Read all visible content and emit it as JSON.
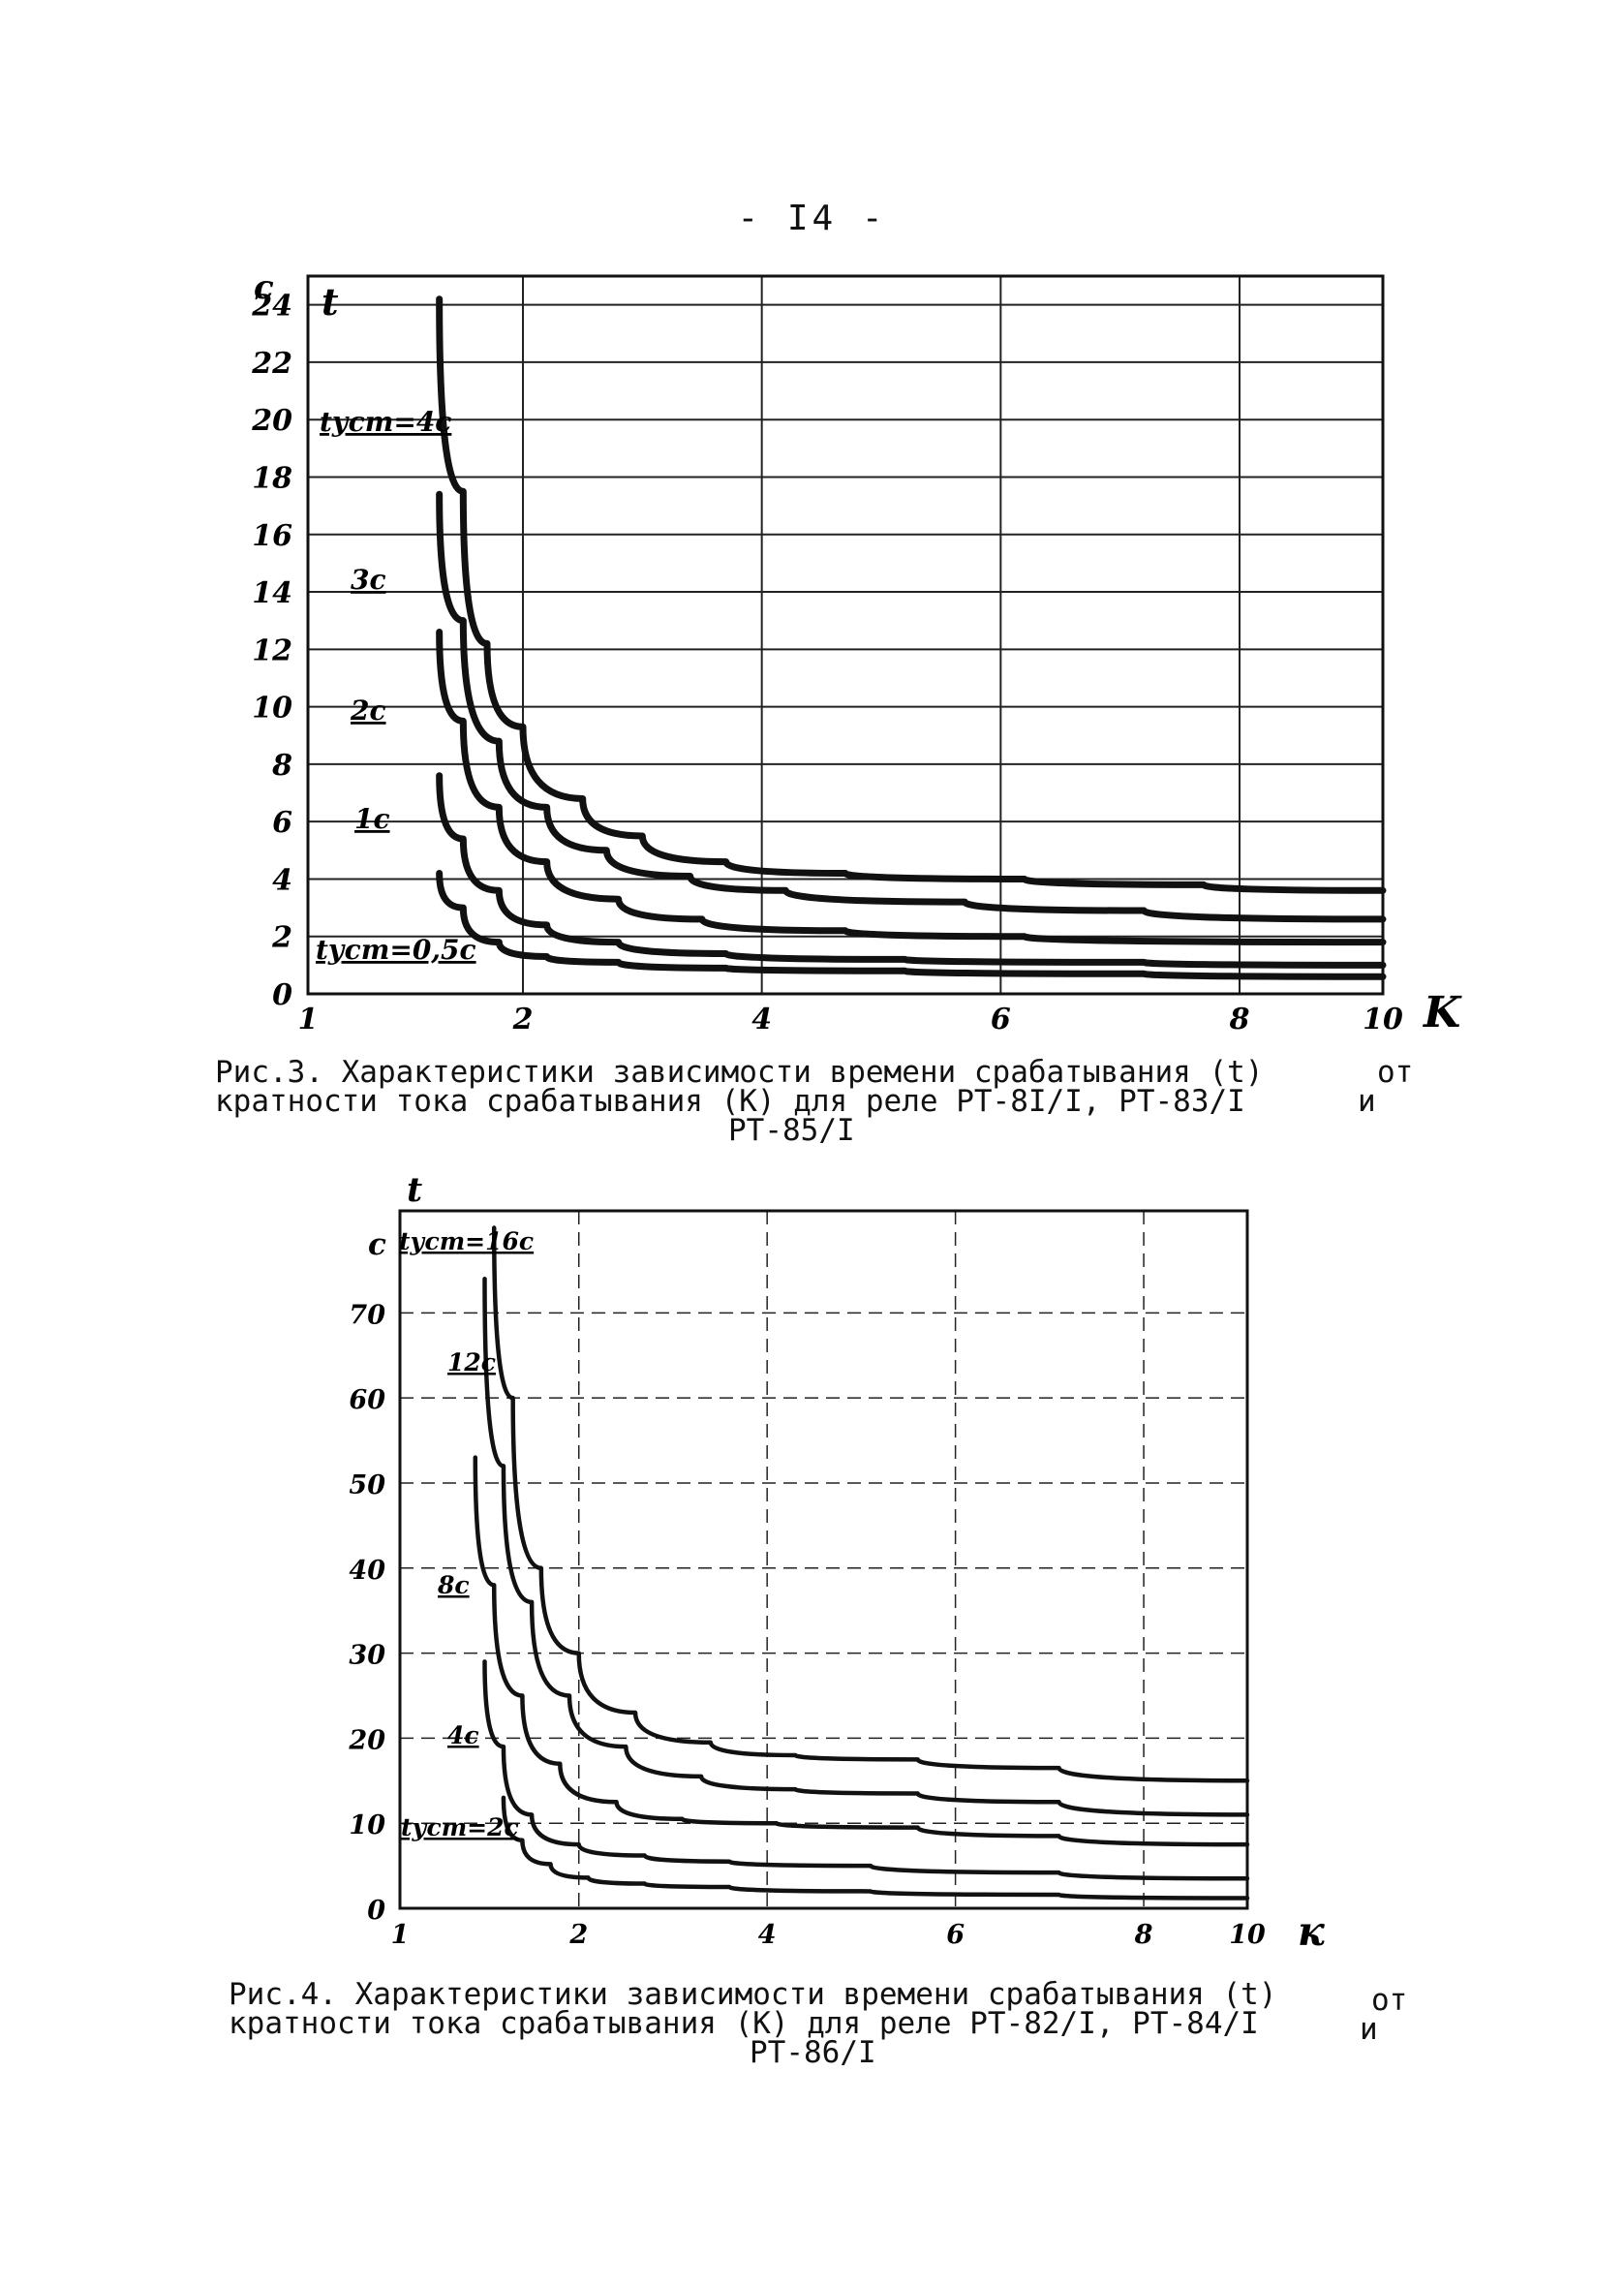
{
  "page_number": "- I4 -",
  "chart_data": [
    {
      "type": "line",
      "ylabel": "t",
      "yunit": "c",
      "xlabel": "K",
      "xlim": [
        1,
        10
      ],
      "ylim": [
        0,
        25
      ],
      "x_ticks": [
        "1",
        "2",
        "4",
        "6",
        "8",
        "10"
      ],
      "x_tick_values": [
        1,
        2.8,
        4.8,
        6.8,
        8.8,
        10
      ],
      "y_ticks": [
        "0",
        "2",
        "4",
        "6",
        "8",
        "10",
        "12",
        "14",
        "16",
        "18",
        "20",
        "22",
        "24"
      ],
      "grid": true,
      "series": [
        {
          "name": "tуст=4c",
          "x": [
            2.1,
            2.3,
            2.5,
            2.8,
            3.3,
            3.8,
            4.5,
            5.5,
            7,
            8.5,
            10
          ],
          "y": [
            24.2,
            17.5,
            12.2,
            9.3,
            6.8,
            5.5,
            4.6,
            4.2,
            4.0,
            3.8,
            3.6
          ]
        },
        {
          "name": "3c",
          "x": [
            2.1,
            2.3,
            2.6,
            3.0,
            3.5,
            4.2,
            5.0,
            6.5,
            8,
            10
          ],
          "y": [
            17.4,
            13.0,
            8.8,
            6.5,
            5.0,
            4.1,
            3.6,
            3.2,
            2.9,
            2.6
          ]
        },
        {
          "name": "2c",
          "x": [
            2.1,
            2.3,
            2.6,
            3.0,
            3.6,
            4.3,
            5.5,
            7,
            10
          ],
          "y": [
            12.6,
            9.5,
            6.5,
            4.6,
            3.3,
            2.6,
            2.2,
            2.0,
            1.8
          ]
        },
        {
          "name": "1c",
          "x": [
            2.1,
            2.3,
            2.6,
            3.0,
            3.6,
            4.5,
            6,
            8,
            10
          ],
          "y": [
            7.6,
            5.4,
            3.6,
            2.4,
            1.8,
            1.4,
            1.2,
            1.1,
            1.0
          ]
        },
        {
          "name": "tуст=0,5c",
          "x": [
            2.1,
            2.3,
            2.6,
            3.0,
            3.6,
            4.5,
            6,
            8,
            10
          ],
          "y": [
            4.2,
            3.0,
            1.8,
            1.3,
            1.1,
            0.9,
            0.8,
            0.7,
            0.6
          ]
        }
      ]
    },
    {
      "type": "line",
      "ylabel": "t",
      "yunit": "c",
      "xlabel": "к",
      "xlim": [
        1,
        10
      ],
      "ylim": [
        0,
        82
      ],
      "x_ticks": [
        "1",
        "2",
        "4",
        "6",
        "8",
        "10"
      ],
      "x_tick_values": [
        1,
        2.9,
        4.9,
        6.9,
        8.9,
        10
      ],
      "y_ticks": [
        "0",
        "10",
        "20",
        "30",
        "40",
        "50",
        "60",
        "70"
      ],
      "grid": true,
      "series": [
        {
          "name": "tуст=16c",
          "x": [
            2.0,
            2.2,
            2.5,
            2.9,
            3.5,
            4.3,
            5.2,
            6.5,
            8,
            10
          ],
          "y": [
            80,
            60,
            40,
            30,
            23,
            19.5,
            18,
            17.5,
            16.5,
            15
          ]
        },
        {
          "name": "12c",
          "x": [
            1.9,
            2.1,
            2.4,
            2.8,
            3.4,
            4.2,
            5.2,
            6.5,
            8,
            10
          ],
          "y": [
            74,
            52,
            36,
            25,
            19,
            15.5,
            14,
            13.5,
            12.5,
            11
          ]
        },
        {
          "name": "8c",
          "x": [
            1.8,
            2.0,
            2.3,
            2.7,
            3.3,
            4.0,
            5.0,
            6.5,
            8,
            10
          ],
          "y": [
            53,
            38,
            25,
            17,
            12.5,
            10.5,
            10,
            9.5,
            8.5,
            7.5
          ]
        },
        {
          "name": "4c",
          "x": [
            1.9,
            2.1,
            2.4,
            2.9,
            3.6,
            4.5,
            6,
            8,
            10
          ],
          "y": [
            29,
            19,
            11,
            7.5,
            6.2,
            5.5,
            5,
            4.2,
            3.5
          ]
        },
        {
          "name": "tуст=2c",
          "x": [
            2.1,
            2.3,
            2.6,
            3.0,
            3.6,
            4.5,
            6,
            8,
            10
          ],
          "y": [
            13,
            8,
            5.2,
            3.6,
            2.9,
            2.5,
            2.0,
            1.6,
            1.2
          ]
        }
      ]
    }
  ],
  "captions": {
    "fig3": {
      "line1": "Рис.3. Характеристики зависимости времени срабатывания (t)",
      "line1_end": "от",
      "line2": "кратности тока срабатывания (K) для реле РТ-8I/I, РТ-83/I",
      "line2_end": "и",
      "line3": "РТ-85/I"
    },
    "fig4": {
      "line1": "Рис.4. Характеристики зависимости времени срабатывания (t)",
      "line1_end": "от",
      "line2": "кратности тока срабатывания (K) для реле РТ-82/I, РТ-84/I",
      "line2_end": "и",
      "line3": "РТ-86/I"
    }
  }
}
